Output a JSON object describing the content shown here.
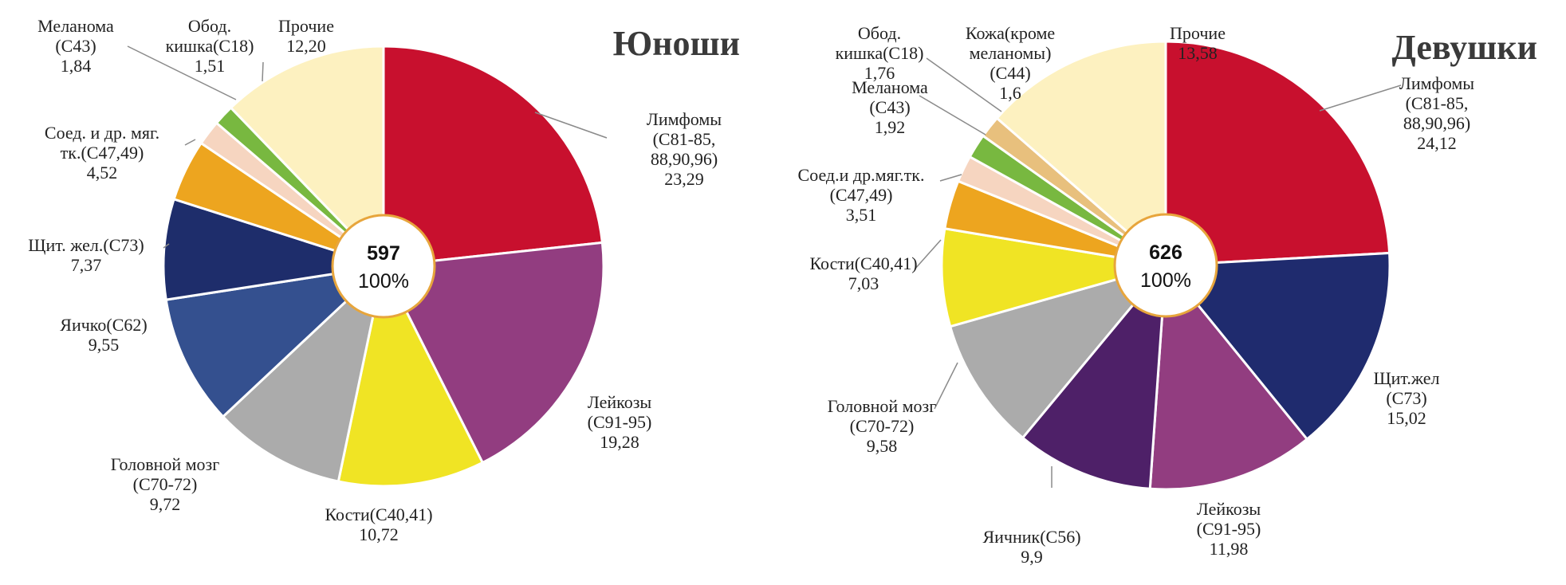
{
  "chart_data": [
    {
      "type": "pie",
      "title": "Юноши",
      "center_total": "597",
      "center_percent": "100%",
      "slices": [
        {
          "label": [
            "Лимфомы",
            "(С81-85,",
            "88,90,96)"
          ],
          "value": 23.29,
          "value_text": "23,29",
          "color": "#c8102e"
        },
        {
          "label": [
            "Лейкозы",
            "(С91-95)"
          ],
          "value": 19.28,
          "value_text": "19,28",
          "color": "#923d80"
        },
        {
          "label": [
            "Кости(С40,41)"
          ],
          "value": 10.72,
          "value_text": "10,72",
          "color": "#f0e424"
        },
        {
          "label": [
            "Головной мозг",
            "(С70-72)"
          ],
          "value": 9.72,
          "value_text": "9,72",
          "color": "#ababab"
        },
        {
          "label": [
            "Яичко(С62)"
          ],
          "value": 9.55,
          "value_text": "9,55",
          "color": "#34508f"
        },
        {
          "label": [
            "Щит. жел.(С73)"
          ],
          "value": 7.37,
          "value_text": "7,37",
          "color": "#1e2d6b"
        },
        {
          "label": [
            "Соед. и др. мяг.",
            "тк.(С47,49)"
          ],
          "value": 4.52,
          "value_text": "4,52",
          "color": "#eda51f"
        },
        {
          "label": [
            "Меланома",
            "(С43)"
          ],
          "value": 1.84,
          "value_text": "1,84",
          "color": "#f6d5c0"
        },
        {
          "label": [
            "Обод.",
            "кишка(С18)"
          ],
          "value": 1.51,
          "value_text": "1,51",
          "color": "#78b840"
        },
        {
          "label": [
            "Прочие"
          ],
          "value": 12.2,
          "value_text": "12,20",
          "color": "#fdf1c0"
        }
      ]
    },
    {
      "type": "pie",
      "title": "Девушки",
      "center_total": "626",
      "center_percent": "100%",
      "slices": [
        {
          "label": [
            "Лимфомы",
            "(С81-85,",
            "88,90,96)"
          ],
          "value": 24.12,
          "value_text": "24,12",
          "color": "#c8102e"
        },
        {
          "label": [
            "Щит.жел",
            "(С73)"
          ],
          "value": 15.02,
          "value_text": "15,02",
          "color": "#1f2b6e"
        },
        {
          "label": [
            "Лейкозы",
            "(С91-95)"
          ],
          "value": 11.98,
          "value_text": "11,98",
          "color": "#923d80"
        },
        {
          "label": [
            "Яичник(С56)"
          ],
          "value": 9.9,
          "value_text": "9,9",
          "color": "#4e2068"
        },
        {
          "label": [
            "Головной мозг",
            "(С70-72)"
          ],
          "value": 9.58,
          "value_text": "9,58",
          "color": "#ababab"
        },
        {
          "label": [
            "Кости(С40,41)"
          ],
          "value": 7.03,
          "value_text": "7,03",
          "color": "#f0e424"
        },
        {
          "label": [
            "Соед.и др.мяг.тк.",
            "(С47,49)"
          ],
          "value": 3.51,
          "value_text": "3,51",
          "color": "#eda51f"
        },
        {
          "label": [
            "Меланома",
            "(С43)"
          ],
          "value": 1.92,
          "value_text": "1,92",
          "color": "#f6d5c0"
        },
        {
          "label": [
            "Обод.",
            "кишка(С18)"
          ],
          "value": 1.76,
          "value_text": "1,76",
          "color": "#78b840"
        },
        {
          "label": [
            "Кожа(кроме",
            "меланомы)",
            "(С44)"
          ],
          "value": 1.6,
          "value_text": "1,6",
          "color": "#e8c07d"
        },
        {
          "label": [
            "Прочие"
          ],
          "value": 13.58,
          "value_text": "13,58",
          "color": "#fdf1c0"
        }
      ]
    }
  ]
}
